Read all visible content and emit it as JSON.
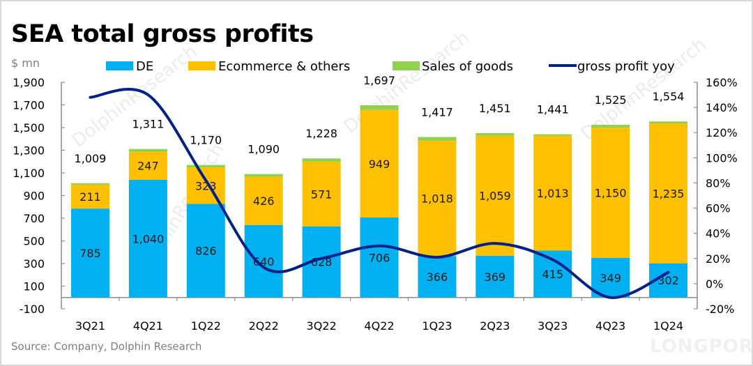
{
  "chart_data": {
    "type": "bar",
    "stacked": true,
    "title": "SEA total gross profits",
    "ylabel": "$ mn",
    "xlabel": "",
    "categories": [
      "3Q21",
      "4Q21",
      "1Q22",
      "2Q22",
      "3Q22",
      "4Q22",
      "1Q23",
      "2Q23",
      "3Q23",
      "4Q23",
      "1Q24"
    ],
    "series": [
      {
        "name": "DE",
        "color": "#00b0f0",
        "values": [
          785,
          1040,
          826,
          640,
          628,
          706,
          366,
          369,
          415,
          349,
          302
        ],
        "labels": [
          "785",
          "1,040",
          "826",
          "640",
          "628",
          "706",
          "366",
          "369",
          "415",
          "349",
          "302"
        ]
      },
      {
        "name": "Ecommerce & others",
        "color": "#ffc000",
        "values": [
          211,
          247,
          323,
          426,
          571,
          949,
          1018,
          1059,
          1013,
          1150,
          1235
        ],
        "labels": [
          "211",
          "247",
          "323",
          "426",
          "571",
          "949",
          "1,018",
          "1,059",
          "1,013",
          "1,150",
          "1,235"
        ]
      },
      {
        "name": "Sales of goods",
        "color": "#92d050",
        "values": [
          13,
          24,
          21,
          24,
          29,
          42,
          33,
          23,
          13,
          26,
          17
        ]
      }
    ],
    "line_series": {
      "name": "gross profit yoy",
      "color": "#002288",
      "axis": "right",
      "values": [
        148,
        150,
        82,
        13,
        20,
        30,
        21,
        32,
        19,
        -11,
        9
      ],
      "unit": "%"
    },
    "totals": {
      "values": [
        1009,
        1311,
        1170,
        1090,
        1228,
        1697,
        1417,
        1451,
        1441,
        1525,
        1554
      ],
      "labels": [
        "1,009",
        "1,311",
        "1,170",
        "1,090",
        "1,228",
        "1,697",
        "1,417",
        "1,451",
        "1,441",
        "1,525",
        "1,554"
      ]
    },
    "ylim": [
      -100,
      1900
    ],
    "yticks": [
      -100,
      100,
      300,
      500,
      700,
      900,
      1100,
      1300,
      1500,
      1700,
      1900
    ],
    "ytick_labels": [
      "-100",
      "100",
      "300",
      "500",
      "700",
      "900",
      "1,100",
      "1,300",
      "1,500",
      "1,700",
      "1,900"
    ],
    "y2lim": [
      -20,
      160
    ],
    "y2ticks": [
      -20,
      0,
      20,
      40,
      60,
      80,
      100,
      120,
      140,
      160
    ],
    "y2tick_labels": [
      "-20%",
      "0%",
      "20%",
      "40%",
      "60%",
      "80%",
      "100%",
      "120%",
      "140%",
      "160%"
    ],
    "grid": false,
    "legend": {
      "placement": "top",
      "entries": [
        "DE",
        "Ecommerce & others",
        "Sales of goods",
        "gross profit yoy"
      ]
    },
    "source": "Source: Company, Dolphin Research"
  },
  "watermarks": {
    "text": "DolphinResearch",
    "brand": "LONGPORT"
  }
}
